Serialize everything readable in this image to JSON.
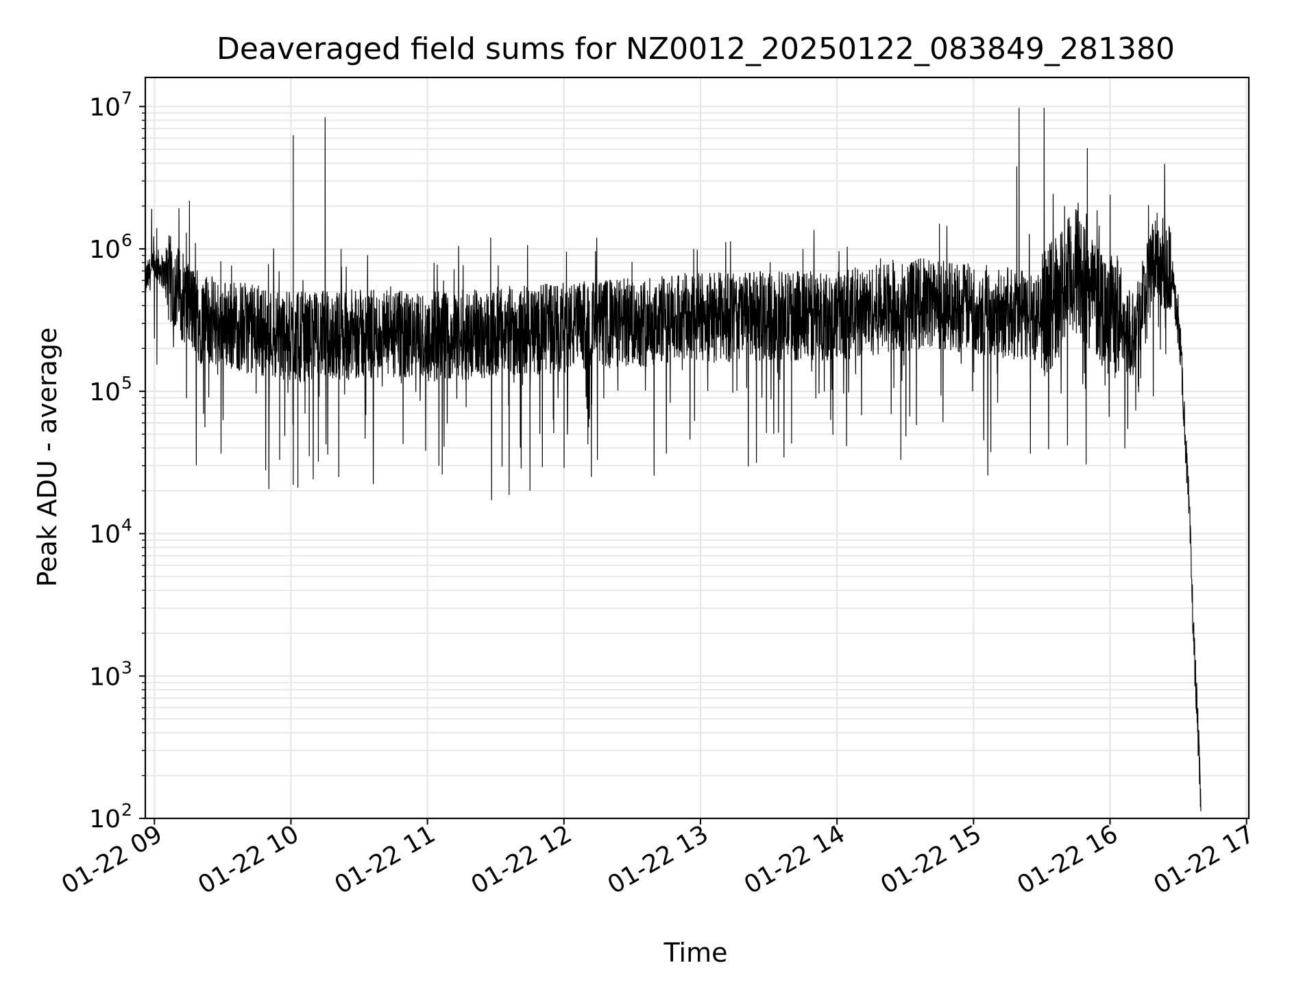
{
  "chart_data": {
    "type": "line",
    "title": "Deaveraged field sums for NZ0012_20250122_083849_281380",
    "xlabel": "Time",
    "ylabel": "Peak ADU - average",
    "yscale": "log",
    "ylim": [
      100,
      16000000
    ],
    "xlim": [
      "2025-01-22 08:56",
      "2025-01-22 17:01"
    ],
    "grid": "on",
    "grid_color": "#e5e5e5",
    "line_color": "#000000",
    "x_ticks": [
      {
        "label": "01-22 09",
        "time": "2025-01-22 09:00"
      },
      {
        "label": "01-22 10",
        "time": "2025-01-22 10:00"
      },
      {
        "label": "01-22 11",
        "time": "2025-01-22 11:00"
      },
      {
        "label": "01-22 12",
        "time": "2025-01-22 12:00"
      },
      {
        "label": "01-22 13",
        "time": "2025-01-22 13:00"
      },
      {
        "label": "01-22 14",
        "time": "2025-01-22 14:00"
      },
      {
        "label": "01-22 15",
        "time": "2025-01-22 15:00"
      },
      {
        "label": "01-22 16",
        "time": "2025-01-22 16:00"
      },
      {
        "label": "01-22 17",
        "time": "2025-01-22 17:00"
      }
    ],
    "y_ticks": [
      {
        "base": "10",
        "exp": "2",
        "value": 100
      },
      {
        "base": "10",
        "exp": "3",
        "value": 1000
      },
      {
        "base": "10",
        "exp": "4",
        "value": 10000
      },
      {
        "base": "10",
        "exp": "5",
        "value": 100000
      },
      {
        "base": "10",
        "exp": "6",
        "value": 1000000
      },
      {
        "base": "10",
        "exp": "7",
        "value": 10000000
      }
    ],
    "series": [
      {
        "baseline": [
          {
            "time": "2025-01-22 08:56",
            "value": 600000
          },
          {
            "time": "2025-01-22 09:01",
            "value": 780000
          },
          {
            "time": "2025-01-22 09:10",
            "value": 520000
          },
          {
            "time": "2025-01-22 09:20",
            "value": 320000
          },
          {
            "time": "2025-01-22 09:40",
            "value": 280000
          },
          {
            "time": "2025-01-22 10:00",
            "value": 240000
          },
          {
            "time": "2025-01-22 10:30",
            "value": 250000
          },
          {
            "time": "2025-01-22 11:00",
            "value": 240000
          },
          {
            "time": "2025-01-22 12:00",
            "value": 280000
          },
          {
            "time": "2025-01-22 13:00",
            "value": 330000
          },
          {
            "time": "2025-01-22 14:00",
            "value": 340000
          },
          {
            "time": "2025-01-22 14:40",
            "value": 420000
          },
          {
            "time": "2025-01-22 15:00",
            "value": 380000
          },
          {
            "time": "2025-01-22 15:30",
            "value": 330000
          },
          {
            "time": "2025-01-22 15:45",
            "value": 700000
          },
          {
            "time": "2025-01-22 16:00",
            "value": 350000
          },
          {
            "time": "2025-01-22 16:10",
            "value": 260000
          },
          {
            "time": "2025-01-22 16:20",
            "value": 900000
          },
          {
            "time": "2025-01-22 16:27",
            "value": 700000
          },
          {
            "time": "2025-01-22 16:31",
            "value": 200000
          },
          {
            "time": "2025-01-22 16:33",
            "value": 50000
          },
          {
            "time": "2025-01-22 16:35",
            "value": 12000
          },
          {
            "time": "2025-01-22 16:36",
            "value": 4000
          },
          {
            "time": "2025-01-22 16:37",
            "value": 1500
          },
          {
            "time": "2025-01-22 16:38",
            "value": 700
          },
          {
            "time": "2025-01-22 16:39",
            "value": 300
          },
          {
            "time": "2025-01-22 16:40",
            "value": 100
          }
        ],
        "spikes": [
          {
            "time": "2025-01-22 09:01",
            "value": 1400000
          },
          {
            "time": "2025-01-22 09:14",
            "value": 1300000
          },
          {
            "time": "2025-01-22 09:18",
            "value": 1100000
          },
          {
            "time": "2025-01-22 10:01",
            "value": 6300000
          },
          {
            "time": "2025-01-22 10:15",
            "value": 8400000
          },
          {
            "time": "2025-01-22 10:22",
            "value": 1000000
          },
          {
            "time": "2025-01-22 12:57",
            "value": 1000000
          },
          {
            "time": "2025-01-22 13:45",
            "value": 1000000
          },
          {
            "time": "2025-01-22 14:45",
            "value": 1500000
          },
          {
            "time": "2025-01-22 15:19",
            "value": 3800000
          },
          {
            "time": "2025-01-22 15:20",
            "value": 9800000
          },
          {
            "time": "2025-01-22 15:31",
            "value": 9800000
          },
          {
            "time": "2025-01-22 15:40",
            "value": 2000000
          },
          {
            "time": "2025-01-22 15:50",
            "value": 5100000
          },
          {
            "time": "2025-01-22 16:00",
            "value": 2400000
          }
        ],
        "dips": [
          {
            "time": "2025-01-22 09:55",
            "value": 33000
          },
          {
            "time": "2025-01-22 10:01",
            "value": 22000
          },
          {
            "time": "2025-01-22 10:03",
            "value": 21000
          },
          {
            "time": "2025-01-22 10:08",
            "value": 35000
          },
          {
            "time": "2025-01-22 10:12",
            "value": 32000
          },
          {
            "time": "2025-01-22 10:21",
            "value": 25000
          },
          {
            "time": "2025-01-22 11:05",
            "value": 30000
          },
          {
            "time": "2025-01-22 11:45",
            "value": 20000
          },
          {
            "time": "2025-01-22 12:00",
            "value": 29000
          },
          {
            "time": "2025-01-22 12:12",
            "value": 25000
          },
          {
            "time": "2025-01-22 13:40",
            "value": 43000
          },
          {
            "time": "2025-01-22 14:28",
            "value": 33000
          }
        ]
      }
    ]
  }
}
